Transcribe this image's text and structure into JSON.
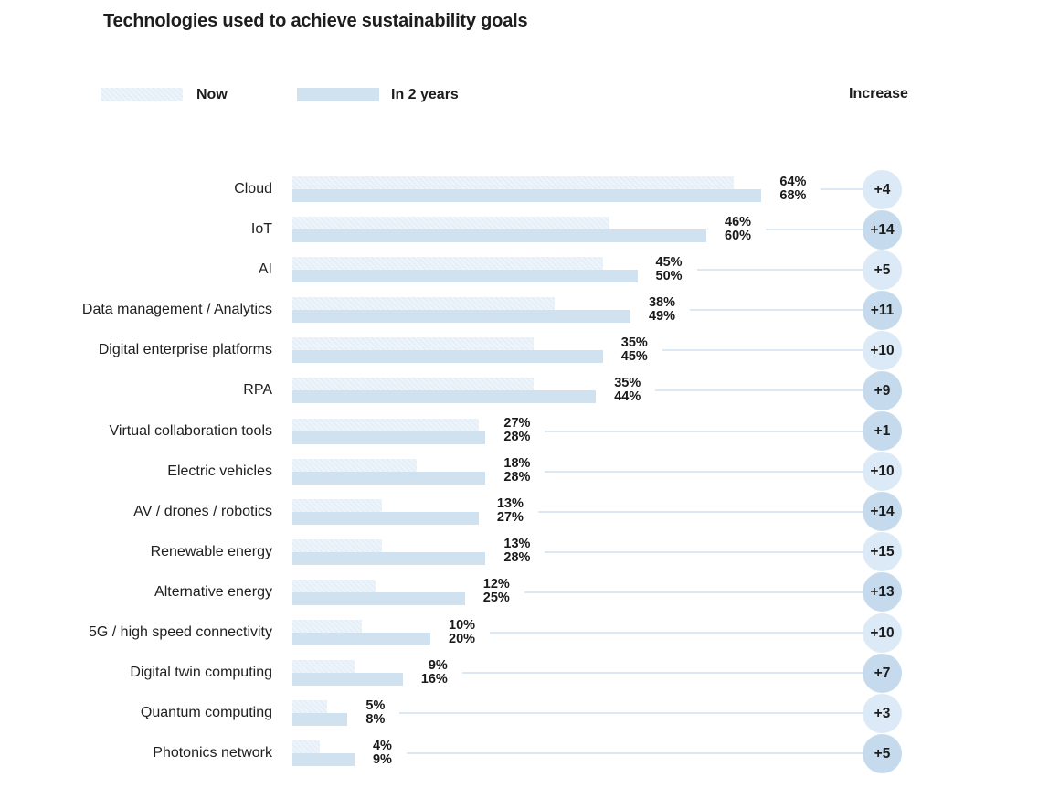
{
  "ui": {
    "title": "Technologies used to achieve sustainability goals",
    "legend": {
      "now": "Now",
      "future": "In 2 years"
    },
    "increase_label": "Increase"
  },
  "colors": {
    "now_bar": "#e5eff8",
    "future_bar": "#d0e1f0",
    "badge_light": "#dbeaf6",
    "badge_dark": "#c5dbed",
    "connector_line": "#dce9f4",
    "text": "#1d1d1d"
  },
  "chart_data": {
    "type": "bar",
    "orientation": "horizontal",
    "title": "Technologies used to achieve sustainability goals",
    "legend_position": "top",
    "value_suffix": "%",
    "xlim": [
      0,
      100
    ],
    "grid": false,
    "categories": [
      "Cloud",
      "IoT",
      "AI",
      "Data management / Analytics",
      "Digital enterprise platforms",
      "RPA",
      "Virtual collaboration tools",
      "Electric vehicles",
      "AV / drones / robotics",
      "Renewable energy",
      "Alternative energy",
      "5G / high speed connectivity",
      "Digital twin computing",
      "Quantum computing",
      "Photonics network"
    ],
    "series": [
      {
        "name": "Now",
        "values": [
          64,
          46,
          45,
          38,
          35,
          35,
          27,
          18,
          13,
          13,
          12,
          10,
          9,
          5,
          4
        ]
      },
      {
        "name": "In 2 years",
        "values": [
          68,
          60,
          50,
          49,
          45,
          44,
          28,
          28,
          27,
          28,
          25,
          20,
          16,
          8,
          9
        ]
      }
    ],
    "increase_labels": [
      "+4",
      "+14",
      "+5",
      "+11",
      "+10",
      "+9",
      "+1",
      "+10",
      "+14",
      "+15",
      "+13",
      "+10",
      "+7",
      "+3",
      "+5"
    ],
    "increase_badge_shades": [
      "light",
      "dark",
      "light",
      "dark",
      "light",
      "dark",
      "dark",
      "light",
      "dark",
      "light",
      "dark",
      "light",
      "dark",
      "light",
      "dark"
    ]
  }
}
